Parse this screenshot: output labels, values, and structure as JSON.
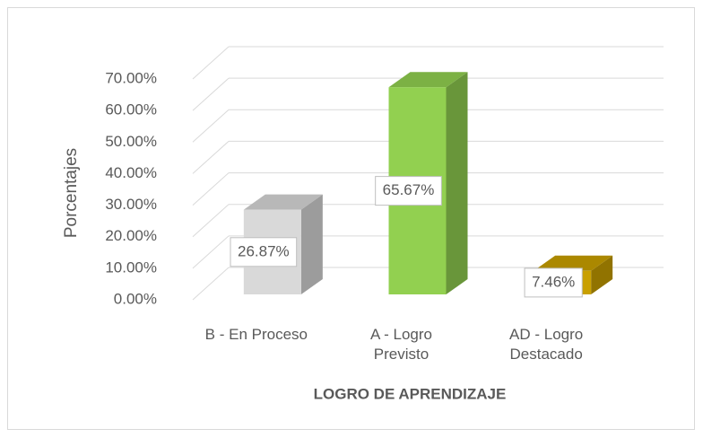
{
  "chart_data": {
    "type": "bar3d",
    "categories": [
      "B - En Proceso",
      "A - Logro Previsto",
      "AD - Logro Destacado"
    ],
    "values": [
      26.87,
      65.67,
      7.46
    ],
    "value_labels": [
      "26.87%",
      "65.67%",
      "7.46%"
    ],
    "colors": [
      "#d9d9d9",
      "#92d050",
      "#c9a000"
    ],
    "ylabel": "Porcentajes",
    "xlabel": "LOGRO DE APRENDIZAJE",
    "ylim": [
      0,
      70
    ],
    "yticks": [
      {
        "value": 0,
        "label": "0.00%"
      },
      {
        "value": 10,
        "label": "10.00%"
      },
      {
        "value": 20,
        "label": "20.00%"
      },
      {
        "value": 30,
        "label": "30.00%"
      },
      {
        "value": 40,
        "label": "40.00%"
      },
      {
        "value": 50,
        "label": "50.00%"
      },
      {
        "value": 60,
        "label": "60.00%"
      },
      {
        "value": 70,
        "label": "70.00%"
      }
    ],
    "grid": true
  }
}
